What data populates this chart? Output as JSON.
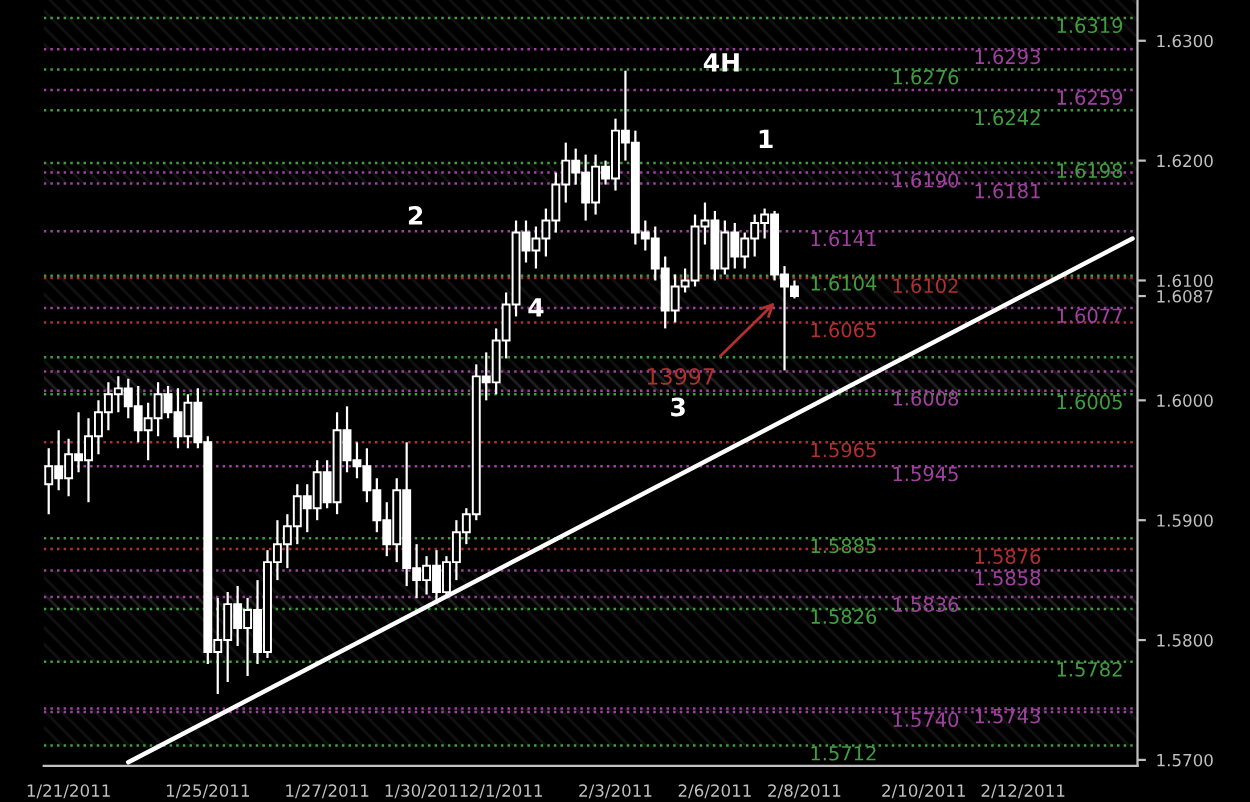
{
  "chart_data": {
    "type": "candlestick",
    "categories": [
      null,
      null,
      "1/21/2011",
      null,
      null,
      null,
      null,
      null,
      null,
      null,
      null,
      null,
      null,
      null,
      null,
      null,
      "1/25/2011",
      null,
      null,
      null,
      null,
      null,
      null,
      null,
      null,
      null,
      null,
      null,
      "1/27/2011",
      null,
      null,
      null,
      null,
      null,
      null,
      null,
      null,
      null,
      "1/30/2011",
      null,
      null,
      null,
      null,
      null,
      null,
      null,
      "2/1/2011",
      null,
      null,
      null,
      null,
      null,
      null,
      null,
      null,
      null,
      null,
      "2/3/2011",
      null,
      null,
      null,
      null,
      null,
      null,
      null,
      null,
      null,
      "2/6/2011",
      null,
      null,
      null,
      null,
      null,
      null,
      null,
      null,
      "2/8/2011",
      null,
      null,
      null,
      null,
      null,
      null,
      null,
      null,
      null,
      null,
      null,
      "2/10/2011",
      null,
      null,
      null,
      null,
      null,
      null,
      null,
      null,
      null,
      "2/12/2011",
      null,
      null,
      null,
      null,
      null,
      null,
      null,
      null,
      null,
      null,
      null
    ],
    "ohlc": [
      [
        1.593,
        1.596,
        1.5905,
        1.5945
      ],
      [
        1.5945,
        1.5975,
        1.5925,
        1.5935
      ],
      [
        1.5935,
        1.5968,
        1.592,
        1.5955
      ],
      [
        1.5955,
        1.599,
        1.594,
        1.595
      ],
      [
        1.595,
        1.5985,
        1.5915,
        1.597
      ],
      [
        1.597,
        1.6,
        1.5955,
        1.599
      ],
      [
        1.599,
        1.6015,
        1.5975,
        1.6005
      ],
      [
        1.6005,
        1.602,
        1.599,
        1.601
      ],
      [
        1.601,
        1.6018,
        1.5985,
        1.5995
      ],
      [
        1.5995,
        1.6012,
        1.5965,
        1.5975
      ],
      [
        1.5975,
        1.5998,
        1.595,
        1.5985
      ],
      [
        1.5985,
        1.6015,
        1.597,
        1.6005
      ],
      [
        1.6005,
        1.6012,
        1.5985,
        1.599
      ],
      [
        1.599,
        1.601,
        1.596,
        1.597
      ],
      [
        1.597,
        1.6005,
        1.596,
        1.5998
      ],
      [
        1.5998,
        1.601,
        1.596,
        1.5965
      ],
      [
        1.5965,
        1.597,
        1.578,
        1.579
      ],
      [
        1.579,
        1.5835,
        1.5755,
        1.58
      ],
      [
        1.58,
        1.584,
        1.5765,
        1.583
      ],
      [
        1.583,
        1.5845,
        1.5795,
        1.581
      ],
      [
        1.581,
        1.5835,
        1.577,
        1.5825
      ],
      [
        1.5825,
        1.585,
        1.578,
        1.579
      ],
      [
        1.579,
        1.5875,
        1.5785,
        1.5865
      ],
      [
        1.5865,
        1.59,
        1.585,
        1.588
      ],
      [
        1.588,
        1.5905,
        1.586,
        1.5895
      ],
      [
        1.5895,
        1.593,
        1.588,
        1.592
      ],
      [
        1.592,
        1.593,
        1.589,
        1.591
      ],
      [
        1.591,
        1.595,
        1.59,
        1.594
      ],
      [
        1.594,
        1.595,
        1.591,
        1.5915
      ],
      [
        1.5915,
        1.599,
        1.5905,
        1.5975
      ],
      [
        1.5975,
        1.5995,
        1.594,
        1.595
      ],
      [
        1.595,
        1.5965,
        1.5935,
        1.5945
      ],
      [
        1.5945,
        1.596,
        1.5915,
        1.5925
      ],
      [
        1.5925,
        1.5935,
        1.589,
        1.59
      ],
      [
        1.59,
        1.5915,
        1.587,
        1.588
      ],
      [
        1.588,
        1.5935,
        1.5865,
        1.5925
      ],
      [
        1.5925,
        1.5965,
        1.5845,
        1.586
      ],
      [
        1.586,
        1.588,
        1.5835,
        1.585
      ],
      [
        1.585,
        1.587,
        1.5838,
        1.5862
      ],
      [
        1.5862,
        1.5875,
        1.583,
        1.584
      ],
      [
        1.584,
        1.587,
        1.5835,
        1.5865
      ],
      [
        1.5865,
        1.59,
        1.585,
        1.589
      ],
      [
        1.589,
        1.591,
        1.588,
        1.5905
      ],
      [
        1.5905,
        1.603,
        1.59,
        1.602
      ],
      [
        1.602,
        1.604,
        1.6,
        1.6015
      ],
      [
        1.6015,
        1.606,
        1.6005,
        1.605
      ],
      [
        1.605,
        1.609,
        1.6035,
        1.608
      ],
      [
        1.608,
        1.615,
        1.607,
        1.614
      ],
      [
        1.614,
        1.615,
        1.6115,
        1.6125
      ],
      [
        1.6125,
        1.6145,
        1.611,
        1.6135
      ],
      [
        1.6135,
        1.616,
        1.612,
        1.615
      ],
      [
        1.615,
        1.619,
        1.614,
        1.618
      ],
      [
        1.618,
        1.6215,
        1.6165,
        1.62
      ],
      [
        1.62,
        1.621,
        1.618,
        1.619
      ],
      [
        1.619,
        1.6205,
        1.615,
        1.6165
      ],
      [
        1.6165,
        1.6205,
        1.6155,
        1.6195
      ],
      [
        1.6195,
        1.62,
        1.618,
        1.6185
      ],
      [
        1.6185,
        1.6235,
        1.6175,
        1.6225
      ],
      [
        1.6225,
        1.6275,
        1.62,
        1.6215
      ],
      [
        1.6215,
        1.6225,
        1.613,
        1.614
      ],
      [
        1.614,
        1.615,
        1.6125,
        1.6135
      ],
      [
        1.6135,
        1.6145,
        1.61,
        1.611
      ],
      [
        1.611,
        1.612,
        1.606,
        1.6075
      ],
      [
        1.6075,
        1.6105,
        1.6065,
        1.6095
      ],
      [
        1.6095,
        1.611,
        1.609,
        1.61
      ],
      [
        1.61,
        1.6155,
        1.6095,
        1.6145
      ],
      [
        1.6145,
        1.6165,
        1.613,
        1.615
      ],
      [
        1.615,
        1.6158,
        1.61,
        1.611
      ],
      [
        1.611,
        1.615,
        1.6105,
        1.614
      ],
      [
        1.614,
        1.6148,
        1.611,
        1.612
      ],
      [
        1.612,
        1.614,
        1.611,
        1.6135
      ],
      [
        1.6135,
        1.6155,
        1.612,
        1.6148
      ],
      [
        1.6148,
        1.616,
        1.6135,
        1.6155
      ],
      [
        1.6155,
        1.6158,
        1.61,
        1.6105
      ],
      [
        1.6105,
        1.6112,
        1.6025,
        1.6095
      ],
      [
        1.6095,
        1.61,
        1.6085,
        1.6087
      ],
      null,
      null,
      null,
      null,
      null,
      null,
      null,
      null,
      null,
      null,
      null,
      null,
      null,
      null,
      null,
      null,
      null,
      null,
      null,
      null,
      null,
      null,
      null,
      null,
      null,
      null,
      null,
      null,
      null,
      null,
      null,
      null,
      null,
      null
    ],
    "color": "#ffffff",
    "series": [
      {
        "type": "line",
        "color": "#ffffff",
        "values": [
          null,
          null,
          null,
          null,
          null,
          null,
          null,
          null,
          1.5698,
          null,
          null,
          null,
          null,
          null,
          null,
          null,
          null,
          null,
          null,
          null,
          null,
          null,
          null,
          null,
          null,
          null,
          null,
          null,
          null,
          null,
          null,
          null,
          null,
          null,
          null,
          null,
          null,
          null,
          null,
          null,
          null,
          null,
          null,
          null,
          null,
          null,
          null,
          null,
          null,
          null,
          null,
          null,
          null,
          null,
          null,
          null,
          null,
          null,
          null,
          null,
          null,
          null,
          null,
          null,
          null,
          null,
          null,
          null,
          null,
          null,
          null,
          null,
          null,
          null,
          null,
          null,
          null,
          null,
          null,
          null,
          null,
          null,
          null,
          null,
          null,
          null,
          null,
          null,
          null,
          null,
          null,
          null,
          null,
          null,
          null,
          null,
          null,
          null,
          null,
          null,
          null,
          null,
          null,
          null,
          null,
          null,
          null,
          null,
          null,
          1.6135
        ]
      }
    ],
    "ylim": [
      1.5695,
      1.6334
    ],
    "yticks": [
      {
        "value": 1.57,
        "label": "1.5700"
      },
      {
        "value": 1.58,
        "label": "1.5800"
      },
      {
        "value": 1.59,
        "label": "1.5900"
      },
      {
        "value": 1.6,
        "label": "1.6000"
      },
      {
        "value": 1.6087,
        "label": "1.6087"
      },
      {
        "value": 1.61,
        "label": "1.6100"
      },
      {
        "value": 1.62,
        "label": "1.6200"
      },
      {
        "value": 1.63,
        "label": "1.6300"
      }
    ],
    "bands": [
      {
        "axis": "y",
        "from": 1.6293,
        "to": 1.6334,
        "color": "#808080"
      },
      {
        "axis": "y",
        "from": 1.6077,
        "to": 1.6104,
        "color": "#808080"
      },
      {
        "axis": "y",
        "from": 1.6181,
        "to": 1.6198,
        "color": "#808080"
      },
      {
        "axis": "y",
        "from": 1.6005,
        "to": 1.6024,
        "color": "#808080"
      },
      {
        "axis": "y",
        "from": 1.6008,
        "to": 1.6036,
        "color": "#808080"
      },
      {
        "axis": "y",
        "from": 1.5826,
        "to": 1.5858,
        "color": "#808080"
      },
      {
        "axis": "y",
        "from": 1.5782,
        "to": 1.5836,
        "color": "#808080"
      },
      {
        "axis": "y",
        "from": 1.5712,
        "to": 1.5743,
        "color": "#808080"
      }
    ],
    "ref_lines": [
      {
        "axis": "y",
        "value": 1.6141,
        "label": "1.6141",
        "color": "#a040a0",
        "line_style": "dotted"
      },
      {
        "axis": "y",
        "value": 1.6276,
        "label": "1.6276",
        "color": "#3f9f3f",
        "line_style": "dotted"
      },
      {
        "axis": "y",
        "value": 1.6293,
        "label": "1.6293",
        "color": "#a040a0",
        "line_style": "dotted"
      },
      {
        "axis": "y",
        "value": 1.6319,
        "label": "1.6319",
        "color": "#3f9f3f",
        "line_style": "dotted"
      },
      {
        "axis": "y",
        "value": 1.6104,
        "label": "1.6104",
        "color": "#3f9f3f",
        "line_style": "dotted"
      },
      {
        "axis": "y",
        "value": 1.619,
        "label": "1.6190",
        "color": "#a040a0",
        "line_style": "dotted"
      },
      {
        "axis": "y",
        "value": 1.6242,
        "label": "1.6242",
        "color": "#3f9f3f",
        "line_style": "dotted"
      },
      {
        "axis": "y",
        "value": 1.6259,
        "label": "1.6259",
        "color": "#a040a0",
        "line_style": "dotted"
      },
      {
        "axis": "y",
        "value": 1.6065,
        "label": "1.6065",
        "color": "#b03030",
        "line_style": "dotted"
      },
      {
        "axis": "y",
        "value": 1.6102,
        "label": "1.6102",
        "color": "#b03030",
        "line_style": "dotted"
      },
      {
        "axis": "y",
        "value": 1.6181,
        "label": "1.6181",
        "color": "#a040a0",
        "line_style": "dotted"
      },
      {
        "axis": "y",
        "value": 1.6198,
        "label": "1.6198",
        "color": "#3f9f3f",
        "line_style": "dotted"
      },
      {
        "axis": "y",
        "value": 1.5965,
        "label": "1.5965",
        "color": "#b03030",
        "line_style": "dotted"
      },
      {
        "axis": "y",
        "value": 1.6008,
        "label": "1.6008",
        "color": "#a040a0",
        "line_style": "dotted"
      },
      {
        "axis": "y",
        "value": 1.6024,
        "label": null,
        "color": "#a040a0",
        "line_style": "dotted"
      },
      {
        "axis": "y",
        "value": 1.6077,
        "label": "1.6077",
        "color": "#a040a0",
        "line_style": "dotted"
      },
      {
        "axis": "y",
        "value": 1.5885,
        "label": "1.5885",
        "color": "#3f9f3f",
        "line_style": "dotted"
      },
      {
        "axis": "y",
        "value": 1.5945,
        "label": "1.5945",
        "color": "#a040a0",
        "line_style": "dotted"
      },
      {
        "axis": "y",
        "value": 1.5876,
        "label": "1.5876",
        "color": "#b03030",
        "line_style": "dotted"
      },
      {
        "axis": "y",
        "value": 1.6036,
        "label": null,
        "color": "#3f9f3f",
        "line_style": "dotted"
      },
      {
        "axis": "y",
        "value": 1.5826,
        "label": "1.5826",
        "color": "#3f9f3f",
        "line_style": "dotted"
      },
      {
        "axis": "y",
        "value": 1.5836,
        "label": "1.5836",
        "color": "#a040a0",
        "line_style": "dotted"
      },
      {
        "axis": "y",
        "value": 1.5858,
        "label": "1.5858",
        "color": "#a040a0",
        "line_style": "dotted"
      },
      {
        "axis": "y",
        "value": 1.6005,
        "label": "1.6005",
        "color": "#3f9f3f",
        "line_style": "dotted"
      },
      {
        "axis": "y",
        "value": 1.5712,
        "label": "1.5712",
        "color": "#3f9f3f",
        "line_style": "dotted"
      },
      {
        "axis": "y",
        "value": 1.574,
        "label": "1.5740",
        "color": "#a040a0",
        "line_style": "dotted"
      },
      {
        "axis": "y",
        "value": 1.5743,
        "label": "1.5743",
        "color": "#a040a0",
        "line_style": "dotted"
      },
      {
        "axis": "y",
        "value": 1.5782,
        "label": "1.5782",
        "color": "#3f9f3f",
        "line_style": "dotted"
      }
    ],
    "annotations": [
      "4H",
      "1",
      "2",
      "3",
      "4",
      "13997"
    ],
    "grid": false,
    "legend": false
  }
}
